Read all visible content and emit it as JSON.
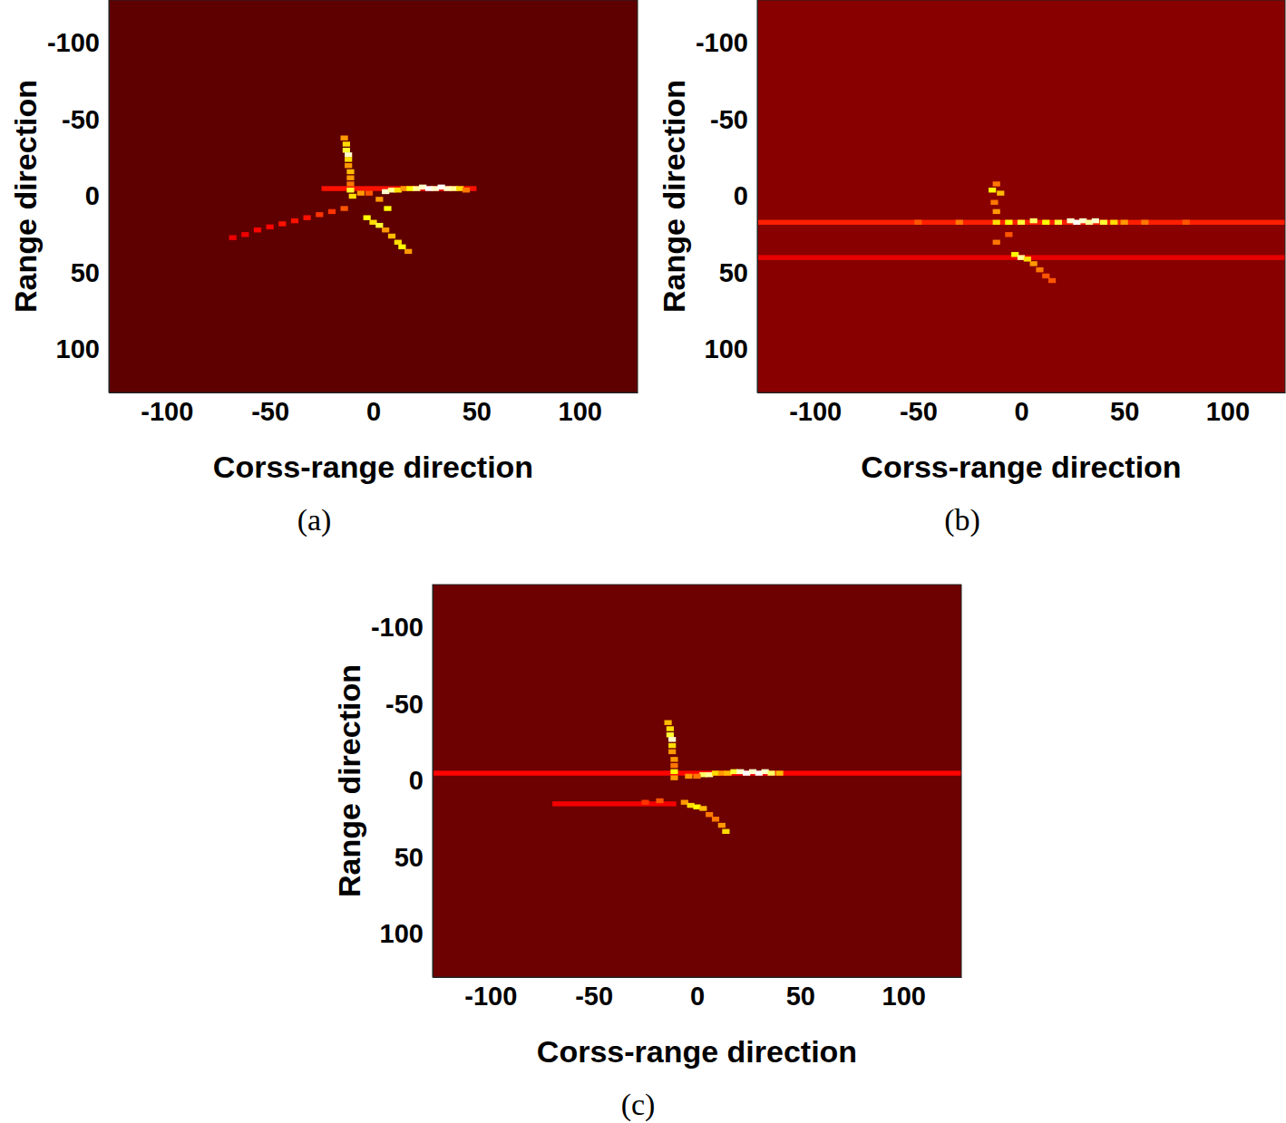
{
  "chart_data": [
    {
      "type": "heatmap",
      "panel_label": "(a)",
      "xlabel": "Corss-range direction",
      "ylabel": "Range direction",
      "xlim": [
        -128,
        128
      ],
      "ylim": [
        -128,
        128
      ],
      "xticks": [
        -100,
        -50,
        0,
        50,
        100
      ],
      "yticks": [
        -100,
        -50,
        0,
        50,
        100
      ],
      "zlim": [
        0,
        1
      ],
      "noise_level": 0.14,
      "streaks": [
        [
          -25,
          50,
          -5,
          0.4
        ]
      ],
      "cells": [
        [
          6,
          -3,
          0.95
        ],
        [
          9,
          -4,
          0.9
        ],
        [
          12,
          -4,
          0.7
        ],
        [
          15,
          -5,
          0.6
        ],
        [
          18,
          -5,
          0.75
        ],
        [
          21,
          -5,
          0.9
        ],
        [
          24,
          -6,
          0.95
        ],
        [
          27,
          -5,
          1.0
        ],
        [
          30,
          -5,
          0.95
        ],
        [
          33,
          -6,
          1.0
        ],
        [
          36,
          -5,
          0.95
        ],
        [
          39,
          -5,
          0.9
        ],
        [
          42,
          -5,
          0.7
        ],
        [
          45,
          -4,
          0.55
        ],
        [
          -14,
          -38,
          0.6
        ],
        [
          -13,
          -34,
          0.7
        ],
        [
          -13,
          -30,
          0.8
        ],
        [
          -12,
          -27,
          0.95
        ],
        [
          -12,
          -24,
          0.7
        ],
        [
          -12,
          -20,
          0.6
        ],
        [
          -11,
          -16,
          0.65
        ],
        [
          -11,
          -12,
          0.6
        ],
        [
          -11,
          -8,
          0.55
        ],
        [
          -11,
          -4,
          0.8
        ],
        [
          -10,
          0,
          0.7
        ],
        [
          -6,
          -2,
          0.6
        ],
        [
          -2,
          -2,
          0.5
        ],
        [
          7,
          8,
          0.75
        ],
        [
          3,
          2,
          0.6
        ],
        [
          -3,
          14,
          0.75
        ],
        [
          0,
          17,
          0.7
        ],
        [
          3,
          19,
          0.8
        ],
        [
          6,
          22,
          0.6
        ],
        [
          9,
          26,
          0.65
        ],
        [
          12,
          30,
          0.7
        ],
        [
          14,
          33,
          0.75
        ],
        [
          17,
          36,
          0.6
        ],
        [
          -14,
          8,
          0.5
        ],
        [
          -20,
          10,
          0.45
        ],
        [
          -26,
          12,
          0.45
        ],
        [
          -32,
          14,
          0.4
        ],
        [
          -38,
          16,
          0.4
        ],
        [
          -44,
          18,
          0.4
        ],
        [
          -50,
          20,
          0.38
        ],
        [
          -56,
          22,
          0.38
        ],
        [
          -62,
          25,
          0.35
        ],
        [
          -68,
          27,
          0.35
        ]
      ]
    },
    {
      "type": "heatmap",
      "panel_label": "(b)",
      "xlabel": "Corss-range direction",
      "ylabel": "Range direction",
      "xlim": [
        -128,
        128
      ],
      "ylim": [
        -128,
        128
      ],
      "xticks": [
        -100,
        -50,
        0,
        50,
        100
      ],
      "yticks": [
        -100,
        -50,
        0,
        50,
        100
      ],
      "zlim": [
        0,
        1
      ],
      "noise_level": 0.2,
      "streaks": [
        [
          -128,
          128,
          17,
          0.42
        ],
        [
          -128,
          128,
          40,
          0.34
        ]
      ],
      "cells": [
        [
          -12,
          17,
          0.7
        ],
        [
          -6,
          17,
          0.75
        ],
        [
          0,
          17,
          0.8
        ],
        [
          6,
          16,
          0.85
        ],
        [
          12,
          17,
          0.75
        ],
        [
          18,
          17,
          0.8
        ],
        [
          24,
          16,
          0.95
        ],
        [
          27,
          17,
          1.0
        ],
        [
          30,
          16,
          0.95
        ],
        [
          33,
          17,
          0.9
        ],
        [
          36,
          16,
          0.95
        ],
        [
          40,
          17,
          0.8
        ],
        [
          45,
          17,
          0.7
        ],
        [
          50,
          17,
          0.6
        ],
        [
          -30,
          17,
          0.55
        ],
        [
          -50,
          17,
          0.5
        ],
        [
          60,
          17,
          0.55
        ],
        [
          80,
          17,
          0.5
        ],
        [
          -14,
          -4,
          0.75
        ],
        [
          -10,
          -2,
          0.65
        ],
        [
          -12,
          -8,
          0.55
        ],
        [
          -13,
          4,
          0.55
        ],
        [
          -12,
          10,
          0.6
        ],
        [
          -3,
          38,
          0.75
        ],
        [
          0,
          40,
          0.9
        ],
        [
          3,
          41,
          0.7
        ],
        [
          6,
          44,
          0.6
        ],
        [
          9,
          48,
          0.55
        ],
        [
          12,
          52,
          0.5
        ],
        [
          15,
          55,
          0.5
        ],
        [
          -12,
          30,
          0.55
        ],
        [
          -6,
          25,
          0.5
        ]
      ]
    },
    {
      "type": "heatmap",
      "panel_label": "(c)",
      "xlabel": "Corss-range direction",
      "ylabel": "Range direction",
      "xlim": [
        -128,
        128
      ],
      "ylim": [
        -128,
        128
      ],
      "xticks": [
        -100,
        -50,
        0,
        50,
        100
      ],
      "yticks": [
        -100,
        -50,
        0,
        50,
        100
      ],
      "zlim": [
        0,
        1
      ],
      "noise_level": 0.16,
      "streaks": [
        [
          -128,
          128,
          -5,
          0.38
        ],
        [
          -70,
          -10,
          15,
          0.36
        ]
      ],
      "cells": [
        [
          -14,
          -38,
          0.65
        ],
        [
          -13,
          -34,
          0.7
        ],
        [
          -13,
          -30,
          0.8
        ],
        [
          -12,
          -27,
          0.95
        ],
        [
          -12,
          -23,
          0.7
        ],
        [
          -12,
          -19,
          0.6
        ],
        [
          -11,
          -14,
          0.6
        ],
        [
          -11,
          -10,
          0.55
        ],
        [
          -11,
          -6,
          0.75
        ],
        [
          -11,
          -2,
          0.6
        ],
        [
          3,
          -4,
          0.85
        ],
        [
          6,
          -4,
          0.9
        ],
        [
          9,
          -5,
          0.7
        ],
        [
          12,
          -5,
          0.6
        ],
        [
          15,
          -5,
          0.65
        ],
        [
          18,
          -6,
          0.8
        ],
        [
          21,
          -6,
          0.95
        ],
        [
          24,
          -5,
          1.0
        ],
        [
          27,
          -6,
          0.95
        ],
        [
          30,
          -5,
          1.0
        ],
        [
          33,
          -6,
          0.95
        ],
        [
          36,
          -5,
          0.85
        ],
        [
          40,
          -5,
          0.65
        ],
        [
          -4,
          -3,
          0.6
        ],
        [
          0,
          -3,
          0.55
        ],
        [
          -6,
          14,
          0.6
        ],
        [
          -3,
          16,
          0.7
        ],
        [
          0,
          17,
          0.75
        ],
        [
          3,
          18,
          0.65
        ],
        [
          6,
          22,
          0.55
        ],
        [
          9,
          25,
          0.55
        ],
        [
          12,
          29,
          0.6
        ],
        [
          14,
          33,
          0.7
        ],
        [
          -18,
          13,
          0.5
        ],
        [
          -25,
          14,
          0.45
        ]
      ]
    }
  ]
}
